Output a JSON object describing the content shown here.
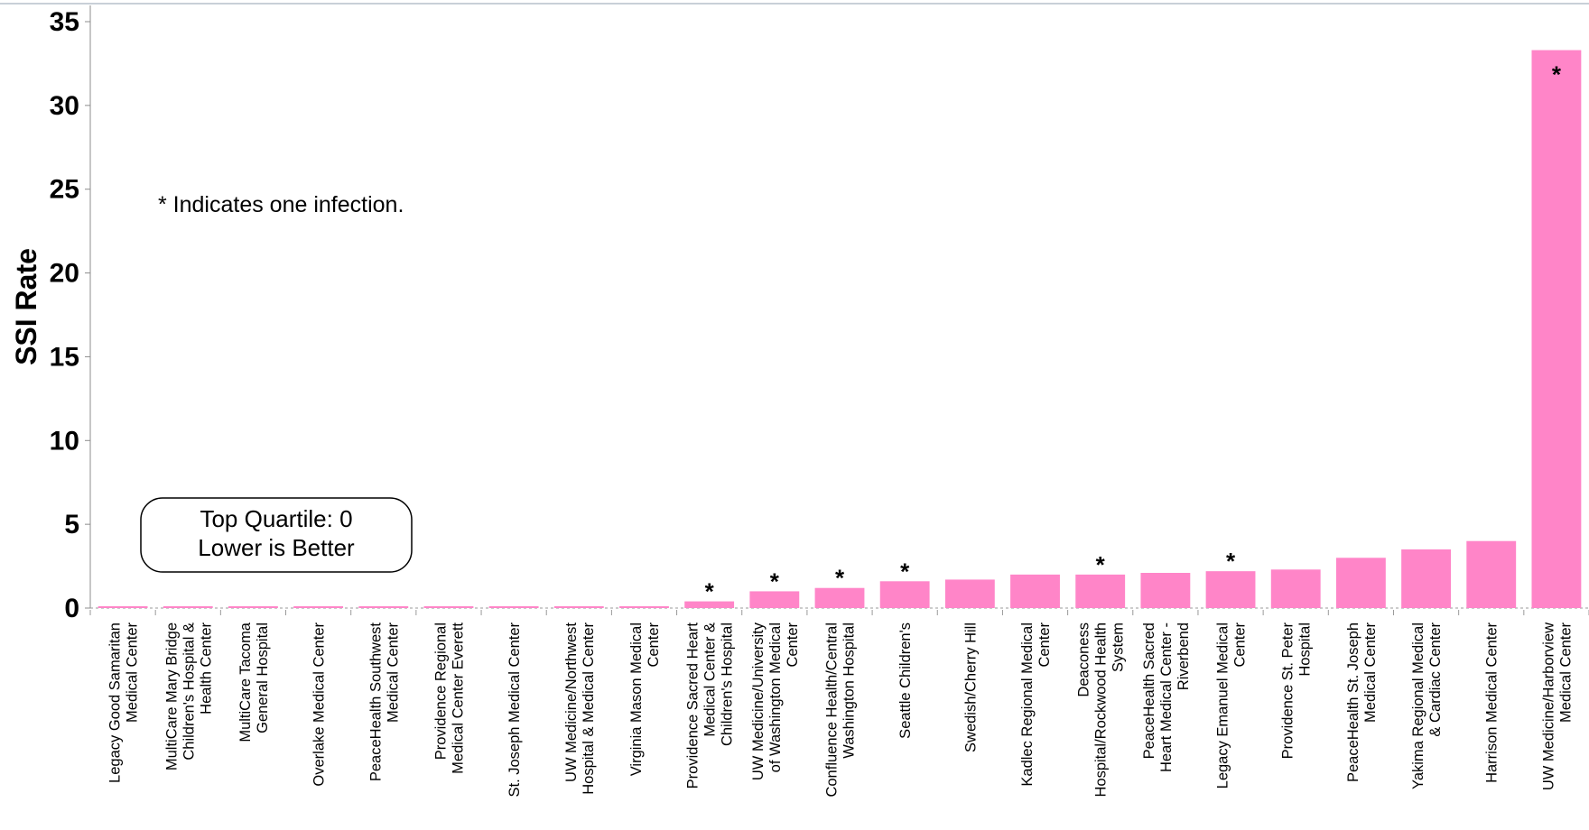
{
  "chart_data": {
    "type": "bar",
    "ylabel": "SSI Rate",
    "xlabel": "",
    "ylim": [
      0,
      35
    ],
    "yticks": [
      0,
      5,
      10,
      15,
      20,
      25,
      30,
      35
    ],
    "grid": false,
    "bar_color": "#ff85c8",
    "categories": [
      [
        "Legacy Good Samaritan",
        "Medical Center"
      ],
      [
        "MultiCare Mary Bridge",
        "Children's Hospital &",
        "Health Center"
      ],
      [
        "MultiCare Tacoma",
        "General Hospital"
      ],
      [
        "Overlake Medical Center"
      ],
      [
        "PeaceHealth Southwest",
        "Medical Center"
      ],
      [
        "Providence Regional",
        "Medical Center Everett"
      ],
      [
        "St. Joseph Medical Center"
      ],
      [
        "UW Medicine/Northwest",
        "Hospital & Medical Center"
      ],
      [
        "Virginia Mason Medical",
        "Center"
      ],
      [
        "Providence Sacred Heart",
        "Medical Center &",
        "Children's Hospital"
      ],
      [
        "UW Medicine/University",
        "of Washington Medical",
        "Center"
      ],
      [
        "Confluence Health/Central",
        "Washington Hospital"
      ],
      [
        "Seattle Children's"
      ],
      [
        "Swedish/Cherry Hill"
      ],
      [
        "Kadlec Regional Medical",
        "Center"
      ],
      [
        "Deaconess",
        "Hospital/Rockwood Health",
        "System"
      ],
      [
        "PeaceHealth Sacred",
        "Heart Medical Center -",
        "Riverbend"
      ],
      [
        "Legacy Emanuel Medical",
        "Center"
      ],
      [
        "Providence St. Peter",
        "Hospital"
      ],
      [
        "PeaceHealth St. Joseph",
        "Medical Center"
      ],
      [
        "Yakima Regional Medical",
        "& Cardiac Center"
      ],
      [
        "Harrison Medical Center"
      ],
      [
        "UW Medicine/Harborview",
        "Medical Center"
      ]
    ],
    "values": [
      0,
      0,
      0,
      0,
      0,
      0,
      0,
      0,
      0,
      0.4,
      1.0,
      1.2,
      1.6,
      1.7,
      2.0,
      2.0,
      2.1,
      2.2,
      2.3,
      3.0,
      3.5,
      4.0,
      33.3
    ],
    "one_infection": [
      false,
      false,
      false,
      false,
      false,
      false,
      false,
      false,
      false,
      true,
      true,
      true,
      true,
      false,
      false,
      true,
      false,
      true,
      false,
      false,
      false,
      false,
      true
    ],
    "star_symbol": "*",
    "annotations": {
      "note": "* Indicates one infection.",
      "box_line1": "Top Quartile: 0",
      "box_line2": "Lower is Better"
    }
  }
}
